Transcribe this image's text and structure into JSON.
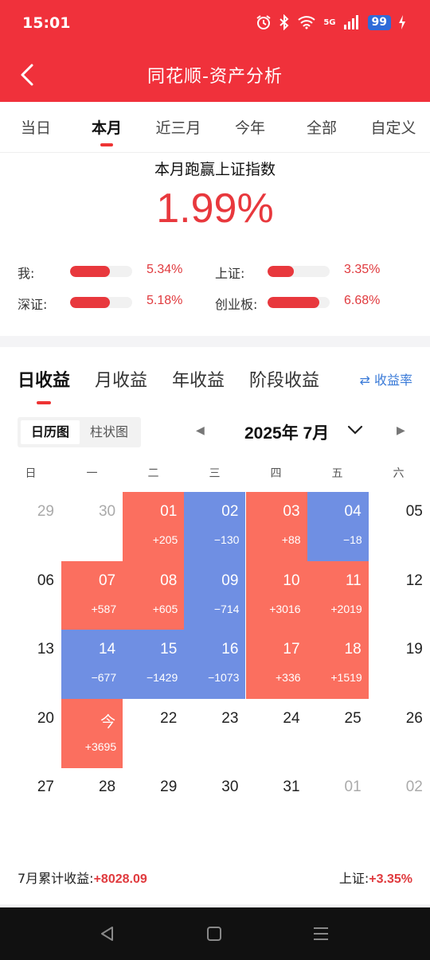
{
  "status": {
    "time": "15:01",
    "network": "5G",
    "battery": "99"
  },
  "nav": {
    "title": "同花顺-资产分析"
  },
  "period_tabs": [
    "当日",
    "本月",
    "近三月",
    "今年",
    "全部",
    "自定义"
  ],
  "summary": {
    "title": "本月跑赢上证指数",
    "value": "1.99%",
    "comparisons": [
      {
        "label": "我:",
        "value": "5.34%",
        "fraction": 0.64
      },
      {
        "label": "上证:",
        "value": "3.35%",
        "fraction": 0.42
      },
      {
        "label": "深证:",
        "value": "5.18%",
        "fraction": 0.64
      },
      {
        "label": "创业板:",
        "value": "6.68%",
        "fraction": 0.83
      }
    ]
  },
  "earnings_tabs": [
    "日收益",
    "月收益",
    "年收益",
    "阶段收益"
  ],
  "rate_toggle": "收益率",
  "view_toggle": {
    "calendar": "日历图",
    "bar": "柱状图"
  },
  "month_title": "2025年 7月",
  "weekdays": [
    "日",
    "一",
    "二",
    "三",
    "四",
    "五",
    "六"
  ],
  "calendar_weeks": [
    [
      {
        "d": "29",
        "other": true
      },
      {
        "d": "30",
        "other": true
      },
      {
        "d": "01",
        "amt": "+205"
      },
      {
        "d": "02",
        "amt": "−130"
      },
      {
        "d": "03",
        "amt": "+88"
      },
      {
        "d": "04",
        "amt": "−18"
      },
      {
        "d": "05"
      }
    ],
    [
      {
        "d": "06"
      },
      {
        "d": "07",
        "amt": "+587"
      },
      {
        "d": "08",
        "amt": "+605"
      },
      {
        "d": "09",
        "amt": "−714"
      },
      {
        "d": "10",
        "amt": "+3016"
      },
      {
        "d": "11",
        "amt": "+2019"
      },
      {
        "d": "12"
      }
    ],
    [
      {
        "d": "13"
      },
      {
        "d": "14",
        "amt": "−677"
      },
      {
        "d": "15",
        "amt": "−1429"
      },
      {
        "d": "16",
        "amt": "−1073"
      },
      {
        "d": "17",
        "amt": "+336"
      },
      {
        "d": "18",
        "amt": "+1519"
      },
      {
        "d": "19"
      }
    ],
    [
      {
        "d": "20"
      },
      {
        "d": "今",
        "amt": "+3695"
      },
      {
        "d": "22"
      },
      {
        "d": "23"
      },
      {
        "d": "24"
      },
      {
        "d": "25"
      },
      {
        "d": "26"
      }
    ],
    [
      {
        "d": "27"
      },
      {
        "d": "28"
      },
      {
        "d": "29"
      },
      {
        "d": "30"
      },
      {
        "d": "31"
      },
      {
        "d": "01",
        "other": true
      },
      {
        "d": "02",
        "other": true
      }
    ]
  ],
  "footer": {
    "month_label": "7月累计收益:",
    "month_value": "+8028.09",
    "index_label": "上证:",
    "index_value": "+3.35%"
  },
  "colors": {
    "brand_red": "#f0313b",
    "gain": "#fb6f5f",
    "loss": "#6f8fe3",
    "link_blue": "#3b7bd8"
  }
}
